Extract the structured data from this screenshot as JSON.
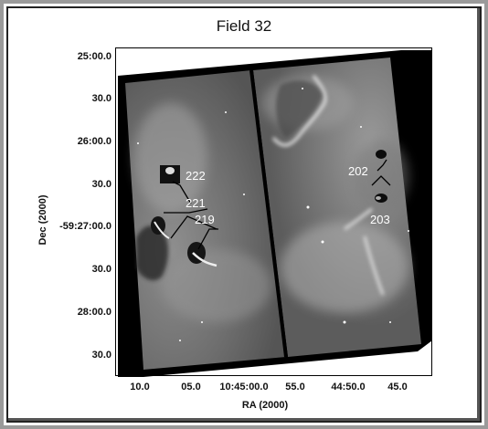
{
  "title": "Field 32",
  "axes": {
    "xlabel": "RA (2000)",
    "ylabel": "Dec (2000)",
    "x_ticks": [
      "10.0",
      "05.0",
      "10:45:00.0",
      "55.0",
      "44:50.0",
      "45.0"
    ],
    "y_ticks": [
      "25:00.0",
      "30.0",
      "26:00.0",
      "30.0",
      "-59:27:00.0",
      "30.0",
      "28:00.0",
      "30.0"
    ]
  },
  "annotations": [
    {
      "label": "222"
    },
    {
      "label": "221"
    },
    {
      "label": "219"
    },
    {
      "label": "202"
    },
    {
      "label": "203"
    }
  ],
  "colors": {
    "background": "#ffffff",
    "sky_dark": "#5a5a5a",
    "sky_light": "#8a8a8a",
    "ridge": "#e0e0e0",
    "border_black": "#000000"
  }
}
